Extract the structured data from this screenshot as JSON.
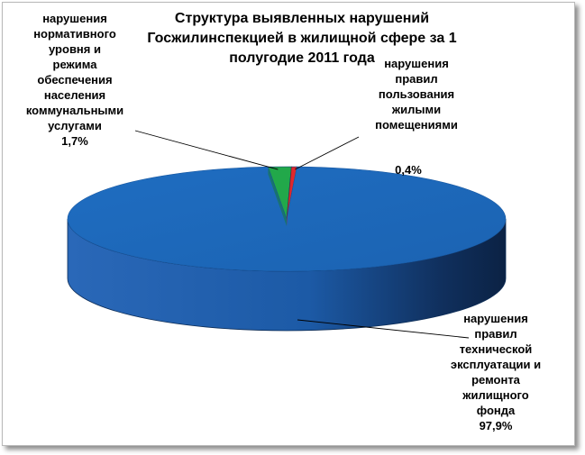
{
  "chart_data": {
    "type": "pie",
    "title": "Структура выявленных нарушений Госжилинспекцией в жилищной сфере за 1 полугодие 2011 года",
    "three_d": true,
    "slices": [
      {
        "label": "нарушения правил технической эксплуатации и ремонта жилищного фонда",
        "value": 97.9,
        "value_label": "97,9%",
        "color": "#1f6fc2"
      },
      {
        "label": "нарушения нормативного уровня и режима обеспечения населения коммунальными услугами",
        "value": 1.7,
        "value_label": "1,7%",
        "color": "#22a84a"
      },
      {
        "label": "нарушения правил пользования жилыми помещениями",
        "value": 0.4,
        "value_label": "0,4%",
        "color": "#e0282c"
      }
    ]
  },
  "labels": {
    "normative_lines": [
      "нарушения",
      "нормативного",
      "уровня и",
      "режима",
      "обеспечения",
      "населения",
      "коммунальными",
      "услугами",
      "1,7%"
    ],
    "usage_lines": [
      "нарушения",
      "правил",
      "пользования",
      "жилыми",
      "помещениями"
    ],
    "usage_pct": "0,4%",
    "tech_lines": [
      "нарушения",
      "правил",
      "технической",
      "эксплуатации и",
      "ремонта",
      "жилищного",
      "фонда",
      "97,9%"
    ]
  }
}
